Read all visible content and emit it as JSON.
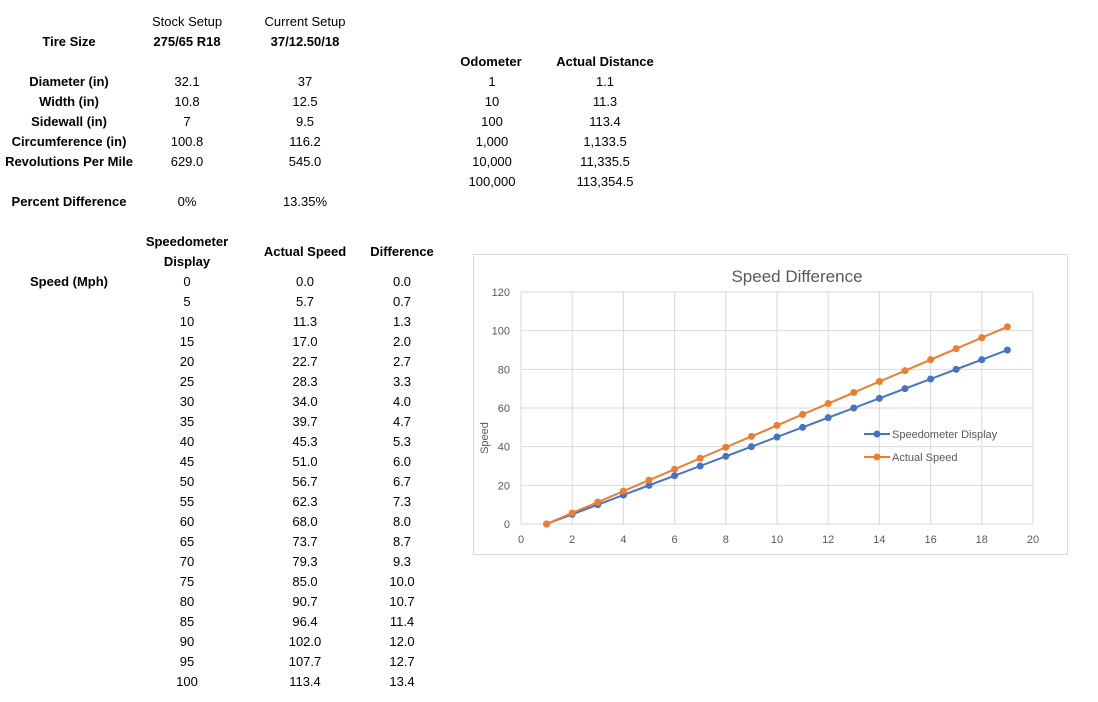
{
  "tire": {
    "col_stock": "Stock Setup",
    "col_current": "Current Setup",
    "size_label": "Tire Size",
    "size_stock": "275/65 R18",
    "size_current": "37/12.50/18",
    "rows": [
      {
        "label": "Diameter (in)",
        "stock": "32.1",
        "current": "37"
      },
      {
        "label": "Width (in)",
        "stock": "10.8",
        "current": "12.5"
      },
      {
        "label": "Sidewall (in)",
        "stock": "7",
        "current": "9.5"
      },
      {
        "label": "Circumference (in)",
        "stock": "100.8",
        "current": "116.2"
      },
      {
        "label": "Revolutions Per Mile",
        "stock": "629.0",
        "current": "545.0"
      }
    ],
    "pct_label": "Percent Difference",
    "pct_stock": "0%",
    "pct_current": "13.35%"
  },
  "odometer": {
    "col_odo": "Odometer",
    "col_actual": "Actual Distance",
    "rows": [
      {
        "odo": "1",
        "actual": "1.1"
      },
      {
        "odo": "10",
        "actual": "11.3"
      },
      {
        "odo": "100",
        "actual": "113.4"
      },
      {
        "odo": "1,000",
        "actual": "1,133.5"
      },
      {
        "odo": "10,000",
        "actual": "11,335.5"
      },
      {
        "odo": "100,000",
        "actual": "113,354.5"
      }
    ]
  },
  "speed": {
    "row_label": "Speed (Mph)",
    "col_display_1": "Speedometer",
    "col_display_2": "Display",
    "col_actual": "Actual Speed",
    "col_diff": "Difference",
    "rows": [
      {
        "display": "0",
        "actual": "0.0",
        "diff": "0.0"
      },
      {
        "display": "5",
        "actual": "5.7",
        "diff": "0.7"
      },
      {
        "display": "10",
        "actual": "11.3",
        "diff": "1.3"
      },
      {
        "display": "15",
        "actual": "17.0",
        "diff": "2.0"
      },
      {
        "display": "20",
        "actual": "22.7",
        "diff": "2.7"
      },
      {
        "display": "25",
        "actual": "28.3",
        "diff": "3.3"
      },
      {
        "display": "30",
        "actual": "34.0",
        "diff": "4.0"
      },
      {
        "display": "35",
        "actual": "39.7",
        "diff": "4.7"
      },
      {
        "display": "40",
        "actual": "45.3",
        "diff": "5.3"
      },
      {
        "display": "45",
        "actual": "51.0",
        "diff": "6.0"
      },
      {
        "display": "50",
        "actual": "56.7",
        "diff": "6.7"
      },
      {
        "display": "55",
        "actual": "62.3",
        "diff": "7.3"
      },
      {
        "display": "60",
        "actual": "68.0",
        "diff": "8.0"
      },
      {
        "display": "65",
        "actual": "73.7",
        "diff": "8.7"
      },
      {
        "display": "70",
        "actual": "79.3",
        "diff": "9.3"
      },
      {
        "display": "75",
        "actual": "85.0",
        "diff": "10.0"
      },
      {
        "display": "80",
        "actual": "90.7",
        "diff": "10.7"
      },
      {
        "display": "85",
        "actual": "96.4",
        "diff": "11.4"
      },
      {
        "display": "90",
        "actual": "102.0",
        "diff": "12.0"
      },
      {
        "display": "95",
        "actual": "107.7",
        "diff": "12.7"
      },
      {
        "display": "100",
        "actual": "113.4",
        "diff": "13.4"
      }
    ]
  },
  "chart_data": {
    "type": "line",
    "title": "Speed Difference",
    "xlabel": "",
    "ylabel": "Speed",
    "xlim": [
      0,
      20
    ],
    "ylim": [
      0,
      120
    ],
    "xticks": [
      0,
      2,
      4,
      6,
      8,
      10,
      12,
      14,
      16,
      18,
      20
    ],
    "yticks": [
      0,
      20,
      40,
      60,
      80,
      100,
      120
    ],
    "grid": true,
    "legend_position": "right",
    "x": [
      1,
      2,
      3,
      4,
      5,
      6,
      7,
      8,
      9,
      10,
      11,
      12,
      13,
      14,
      15,
      16,
      17,
      18,
      19
    ],
    "series": [
      {
        "name": "Speedometer Display",
        "color": "#4472c4",
        "values": [
          0,
          5,
          10,
          15,
          20,
          25,
          30,
          35,
          40,
          45,
          50,
          55,
          60,
          65,
          70,
          75,
          80,
          85,
          90
        ]
      },
      {
        "name": "Actual Speed",
        "color": "#ed7d31",
        "values": [
          0.0,
          5.7,
          11.3,
          17.0,
          22.7,
          28.3,
          34.0,
          39.7,
          45.3,
          51.0,
          56.7,
          62.3,
          68.0,
          73.7,
          79.3,
          85.0,
          90.7,
          96.4,
          102.0
        ]
      }
    ]
  }
}
